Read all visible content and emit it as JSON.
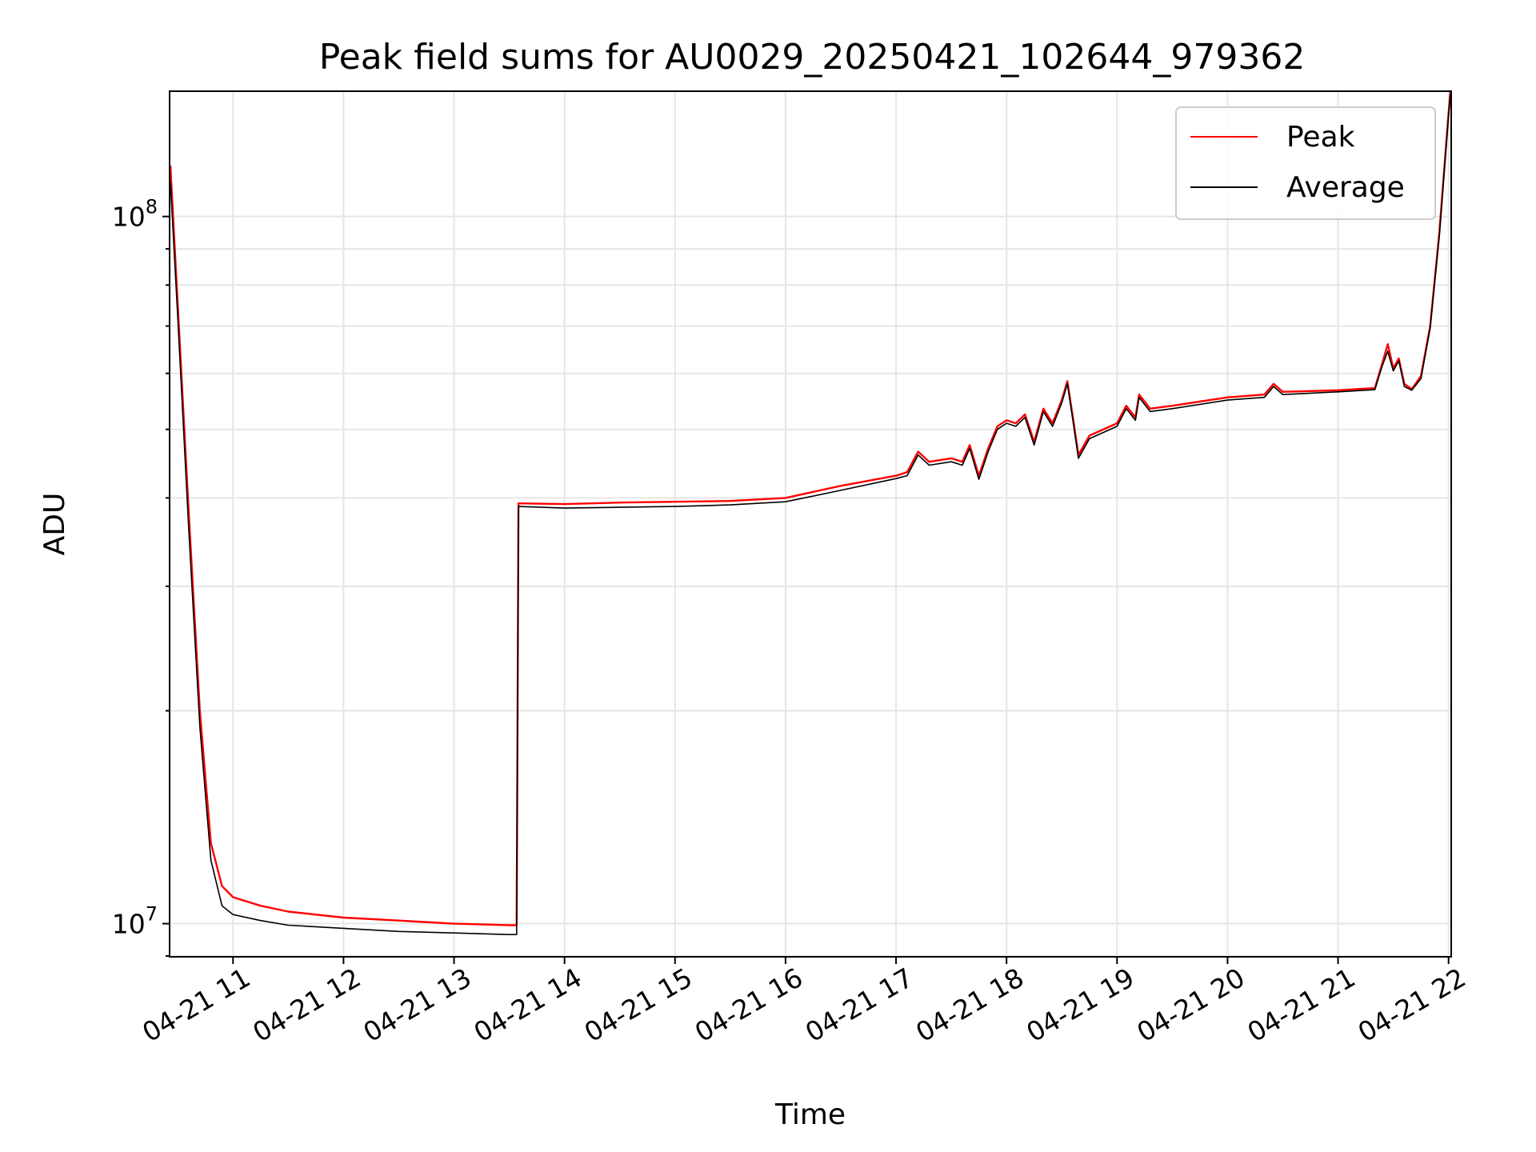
{
  "chart_data": {
    "type": "line",
    "title": "Peak field sums for AU0029_20250421_102644_979362",
    "xlabel": "Time",
    "ylabel": "ADU",
    "y_scale": "log",
    "ylim": [
      9000000,
      150000000
    ],
    "x_range": [
      "2025-04-21 10:26",
      "2025-04-21 22:01"
    ],
    "x_ticks": [
      {
        "t": "2025-04-21 11:00",
        "label": "04-21 11"
      },
      {
        "t": "2025-04-21 12:00",
        "label": "04-21 12"
      },
      {
        "t": "2025-04-21 13:00",
        "label": "04-21 13"
      },
      {
        "t": "2025-04-21 14:00",
        "label": "04-21 14"
      },
      {
        "t": "2025-04-21 15:00",
        "label": "04-21 15"
      },
      {
        "t": "2025-04-21 16:00",
        "label": "04-21 16"
      },
      {
        "t": "2025-04-21 17:00",
        "label": "04-21 17"
      },
      {
        "t": "2025-04-21 18:00",
        "label": "04-21 18"
      },
      {
        "t": "2025-04-21 19:00",
        "label": "04-21 19"
      },
      {
        "t": "2025-04-21 20:00",
        "label": "04-21 20"
      },
      {
        "t": "2025-04-21 21:00",
        "label": "04-21 21"
      },
      {
        "t": "2025-04-21 22:00",
        "label": "04-21 22"
      }
    ],
    "y_ticks": [
      {
        "value": 10000000,
        "label": "10^7"
      },
      {
        "value": 100000000,
        "label": "10^8"
      }
    ],
    "grid": true,
    "legend_position": "top-right",
    "series": [
      {
        "name": "Peak",
        "color": "#ff0000",
        "points": [
          [
            "2025-04-21 10:26",
            118000000
          ],
          [
            "2025-04-21 10:30",
            75000000
          ],
          [
            "2025-04-21 10:36",
            38000000
          ],
          [
            "2025-04-21 10:42",
            20000000
          ],
          [
            "2025-04-21 10:48",
            13000000
          ],
          [
            "2025-04-21 10:54",
            11300000
          ],
          [
            "2025-04-21 11:00",
            10900000
          ],
          [
            "2025-04-21 11:15",
            10600000
          ],
          [
            "2025-04-21 11:30",
            10400000
          ],
          [
            "2025-04-21 12:00",
            10200000
          ],
          [
            "2025-04-21 12:30",
            10100000
          ],
          [
            "2025-04-21 13:00",
            10000000
          ],
          [
            "2025-04-21 13:30",
            9950000
          ],
          [
            "2025-04-21 13:34",
            9950000
          ],
          [
            "2025-04-21 13:35",
            39300000
          ],
          [
            "2025-04-21 14:00",
            39200000
          ],
          [
            "2025-04-21 14:30",
            39400000
          ],
          [
            "2025-04-21 15:00",
            39500000
          ],
          [
            "2025-04-21 15:30",
            39600000
          ],
          [
            "2025-04-21 16:00",
            40000000
          ],
          [
            "2025-04-21 16:30",
            41600000
          ],
          [
            "2025-04-21 17:00",
            43000000
          ],
          [
            "2025-04-21 17:06",
            43500000
          ],
          [
            "2025-04-21 17:12",
            46500000
          ],
          [
            "2025-04-21 17:18",
            45000000
          ],
          [
            "2025-04-21 17:30",
            45500000
          ],
          [
            "2025-04-21 17:36",
            45000000
          ],
          [
            "2025-04-21 17:40",
            47500000
          ],
          [
            "2025-04-21 17:45",
            43000000
          ],
          [
            "2025-04-21 17:50",
            47000000
          ],
          [
            "2025-04-21 17:55",
            50500000
          ],
          [
            "2025-04-21 18:00",
            51500000
          ],
          [
            "2025-04-21 18:05",
            51000000
          ],
          [
            "2025-04-21 18:10",
            52500000
          ],
          [
            "2025-04-21 18:15",
            48000000
          ],
          [
            "2025-04-21 18:20",
            53500000
          ],
          [
            "2025-04-21 18:25",
            51000000
          ],
          [
            "2025-04-21 18:30",
            55000000
          ],
          [
            "2025-04-21 18:33",
            58500000
          ],
          [
            "2025-04-21 18:36",
            52000000
          ],
          [
            "2025-04-21 18:39",
            46000000
          ],
          [
            "2025-04-21 18:45",
            49000000
          ],
          [
            "2025-04-21 19:00",
            51000000
          ],
          [
            "2025-04-21 19:05",
            54000000
          ],
          [
            "2025-04-21 19:10",
            52000000
          ],
          [
            "2025-04-21 19:12",
            56000000
          ],
          [
            "2025-04-21 19:18",
            53500000
          ],
          [
            "2025-04-21 19:30",
            54000000
          ],
          [
            "2025-04-21 20:00",
            55500000
          ],
          [
            "2025-04-21 20:20",
            56000000
          ],
          [
            "2025-04-21 20:25",
            58000000
          ],
          [
            "2025-04-21 20:30",
            56500000
          ],
          [
            "2025-04-21 21:00",
            56800000
          ],
          [
            "2025-04-21 21:20",
            57200000
          ],
          [
            "2025-04-21 21:24",
            62000000
          ],
          [
            "2025-04-21 21:27",
            66000000
          ],
          [
            "2025-04-21 21:30",
            61000000
          ],
          [
            "2025-04-21 21:33",
            63000000
          ],
          [
            "2025-04-21 21:36",
            58000000
          ],
          [
            "2025-04-21 21:40",
            57000000
          ],
          [
            "2025-04-21 21:45",
            59500000
          ],
          [
            "2025-04-21 21:50",
            70000000
          ],
          [
            "2025-04-21 21:55",
            95000000
          ],
          [
            "2025-04-21 22:00",
            140000000
          ],
          [
            "2025-04-21 22:01",
            150000000
          ]
        ]
      },
      {
        "name": "Average",
        "color": "#000000",
        "points": [
          [
            "2025-04-21 10:26",
            112000000
          ],
          [
            "2025-04-21 10:30",
            72000000
          ],
          [
            "2025-04-21 10:36",
            36000000
          ],
          [
            "2025-04-21 10:42",
            19000000
          ],
          [
            "2025-04-21 10:48",
            12300000
          ],
          [
            "2025-04-21 10:54",
            10600000
          ],
          [
            "2025-04-21 11:00",
            10300000
          ],
          [
            "2025-04-21 11:15",
            10100000
          ],
          [
            "2025-04-21 11:30",
            9950000
          ],
          [
            "2025-04-21 12:00",
            9850000
          ],
          [
            "2025-04-21 12:30",
            9750000
          ],
          [
            "2025-04-21 13:00",
            9700000
          ],
          [
            "2025-04-21 13:30",
            9650000
          ],
          [
            "2025-04-21 13:34",
            9650000
          ],
          [
            "2025-04-21 13:35",
            38900000
          ],
          [
            "2025-04-21 14:00",
            38700000
          ],
          [
            "2025-04-21 14:30",
            38800000
          ],
          [
            "2025-04-21 15:00",
            38900000
          ],
          [
            "2025-04-21 15:30",
            39100000
          ],
          [
            "2025-04-21 16:00",
            39500000
          ],
          [
            "2025-04-21 16:30",
            41000000
          ],
          [
            "2025-04-21 17:00",
            42600000
          ],
          [
            "2025-04-21 17:06",
            43000000
          ],
          [
            "2025-04-21 17:12",
            46000000
          ],
          [
            "2025-04-21 17:18",
            44500000
          ],
          [
            "2025-04-21 17:30",
            45000000
          ],
          [
            "2025-04-21 17:36",
            44500000
          ],
          [
            "2025-04-21 17:40",
            47000000
          ],
          [
            "2025-04-21 17:45",
            42500000
          ],
          [
            "2025-04-21 17:50",
            46500000
          ],
          [
            "2025-04-21 17:55",
            50000000
          ],
          [
            "2025-04-21 18:00",
            51000000
          ],
          [
            "2025-04-21 18:05",
            50500000
          ],
          [
            "2025-04-21 18:10",
            52000000
          ],
          [
            "2025-04-21 18:15",
            47500000
          ],
          [
            "2025-04-21 18:20",
            53000000
          ],
          [
            "2025-04-21 18:25",
            50500000
          ],
          [
            "2025-04-21 18:30",
            54500000
          ],
          [
            "2025-04-21 18:33",
            58000000
          ],
          [
            "2025-04-21 18:36",
            51500000
          ],
          [
            "2025-04-21 18:39",
            45500000
          ],
          [
            "2025-04-21 18:45",
            48500000
          ],
          [
            "2025-04-21 19:00",
            50500000
          ],
          [
            "2025-04-21 19:05",
            53500000
          ],
          [
            "2025-04-21 19:10",
            51500000
          ],
          [
            "2025-04-21 19:12",
            55500000
          ],
          [
            "2025-04-21 19:18",
            53000000
          ],
          [
            "2025-04-21 19:30",
            53500000
          ],
          [
            "2025-04-21 20:00",
            55000000
          ],
          [
            "2025-04-21 20:20",
            55500000
          ],
          [
            "2025-04-21 20:25",
            57500000
          ],
          [
            "2025-04-21 20:30",
            56000000
          ],
          [
            "2025-04-21 21:00",
            56500000
          ],
          [
            "2025-04-21 21:20",
            56900000
          ],
          [
            "2025-04-21 21:24",
            61500000
          ],
          [
            "2025-04-21 21:27",
            64500000
          ],
          [
            "2025-04-21 21:30",
            60500000
          ],
          [
            "2025-04-21 21:33",
            62500000
          ],
          [
            "2025-04-21 21:36",
            57500000
          ],
          [
            "2025-04-21 21:40",
            56800000
          ],
          [
            "2025-04-21 21:45",
            59000000
          ],
          [
            "2025-04-21 21:50",
            69500000
          ],
          [
            "2025-04-21 21:55",
            94000000
          ],
          [
            "2025-04-21 22:00",
            139000000
          ],
          [
            "2025-04-21 22:01",
            149000000
          ]
        ]
      }
    ]
  }
}
